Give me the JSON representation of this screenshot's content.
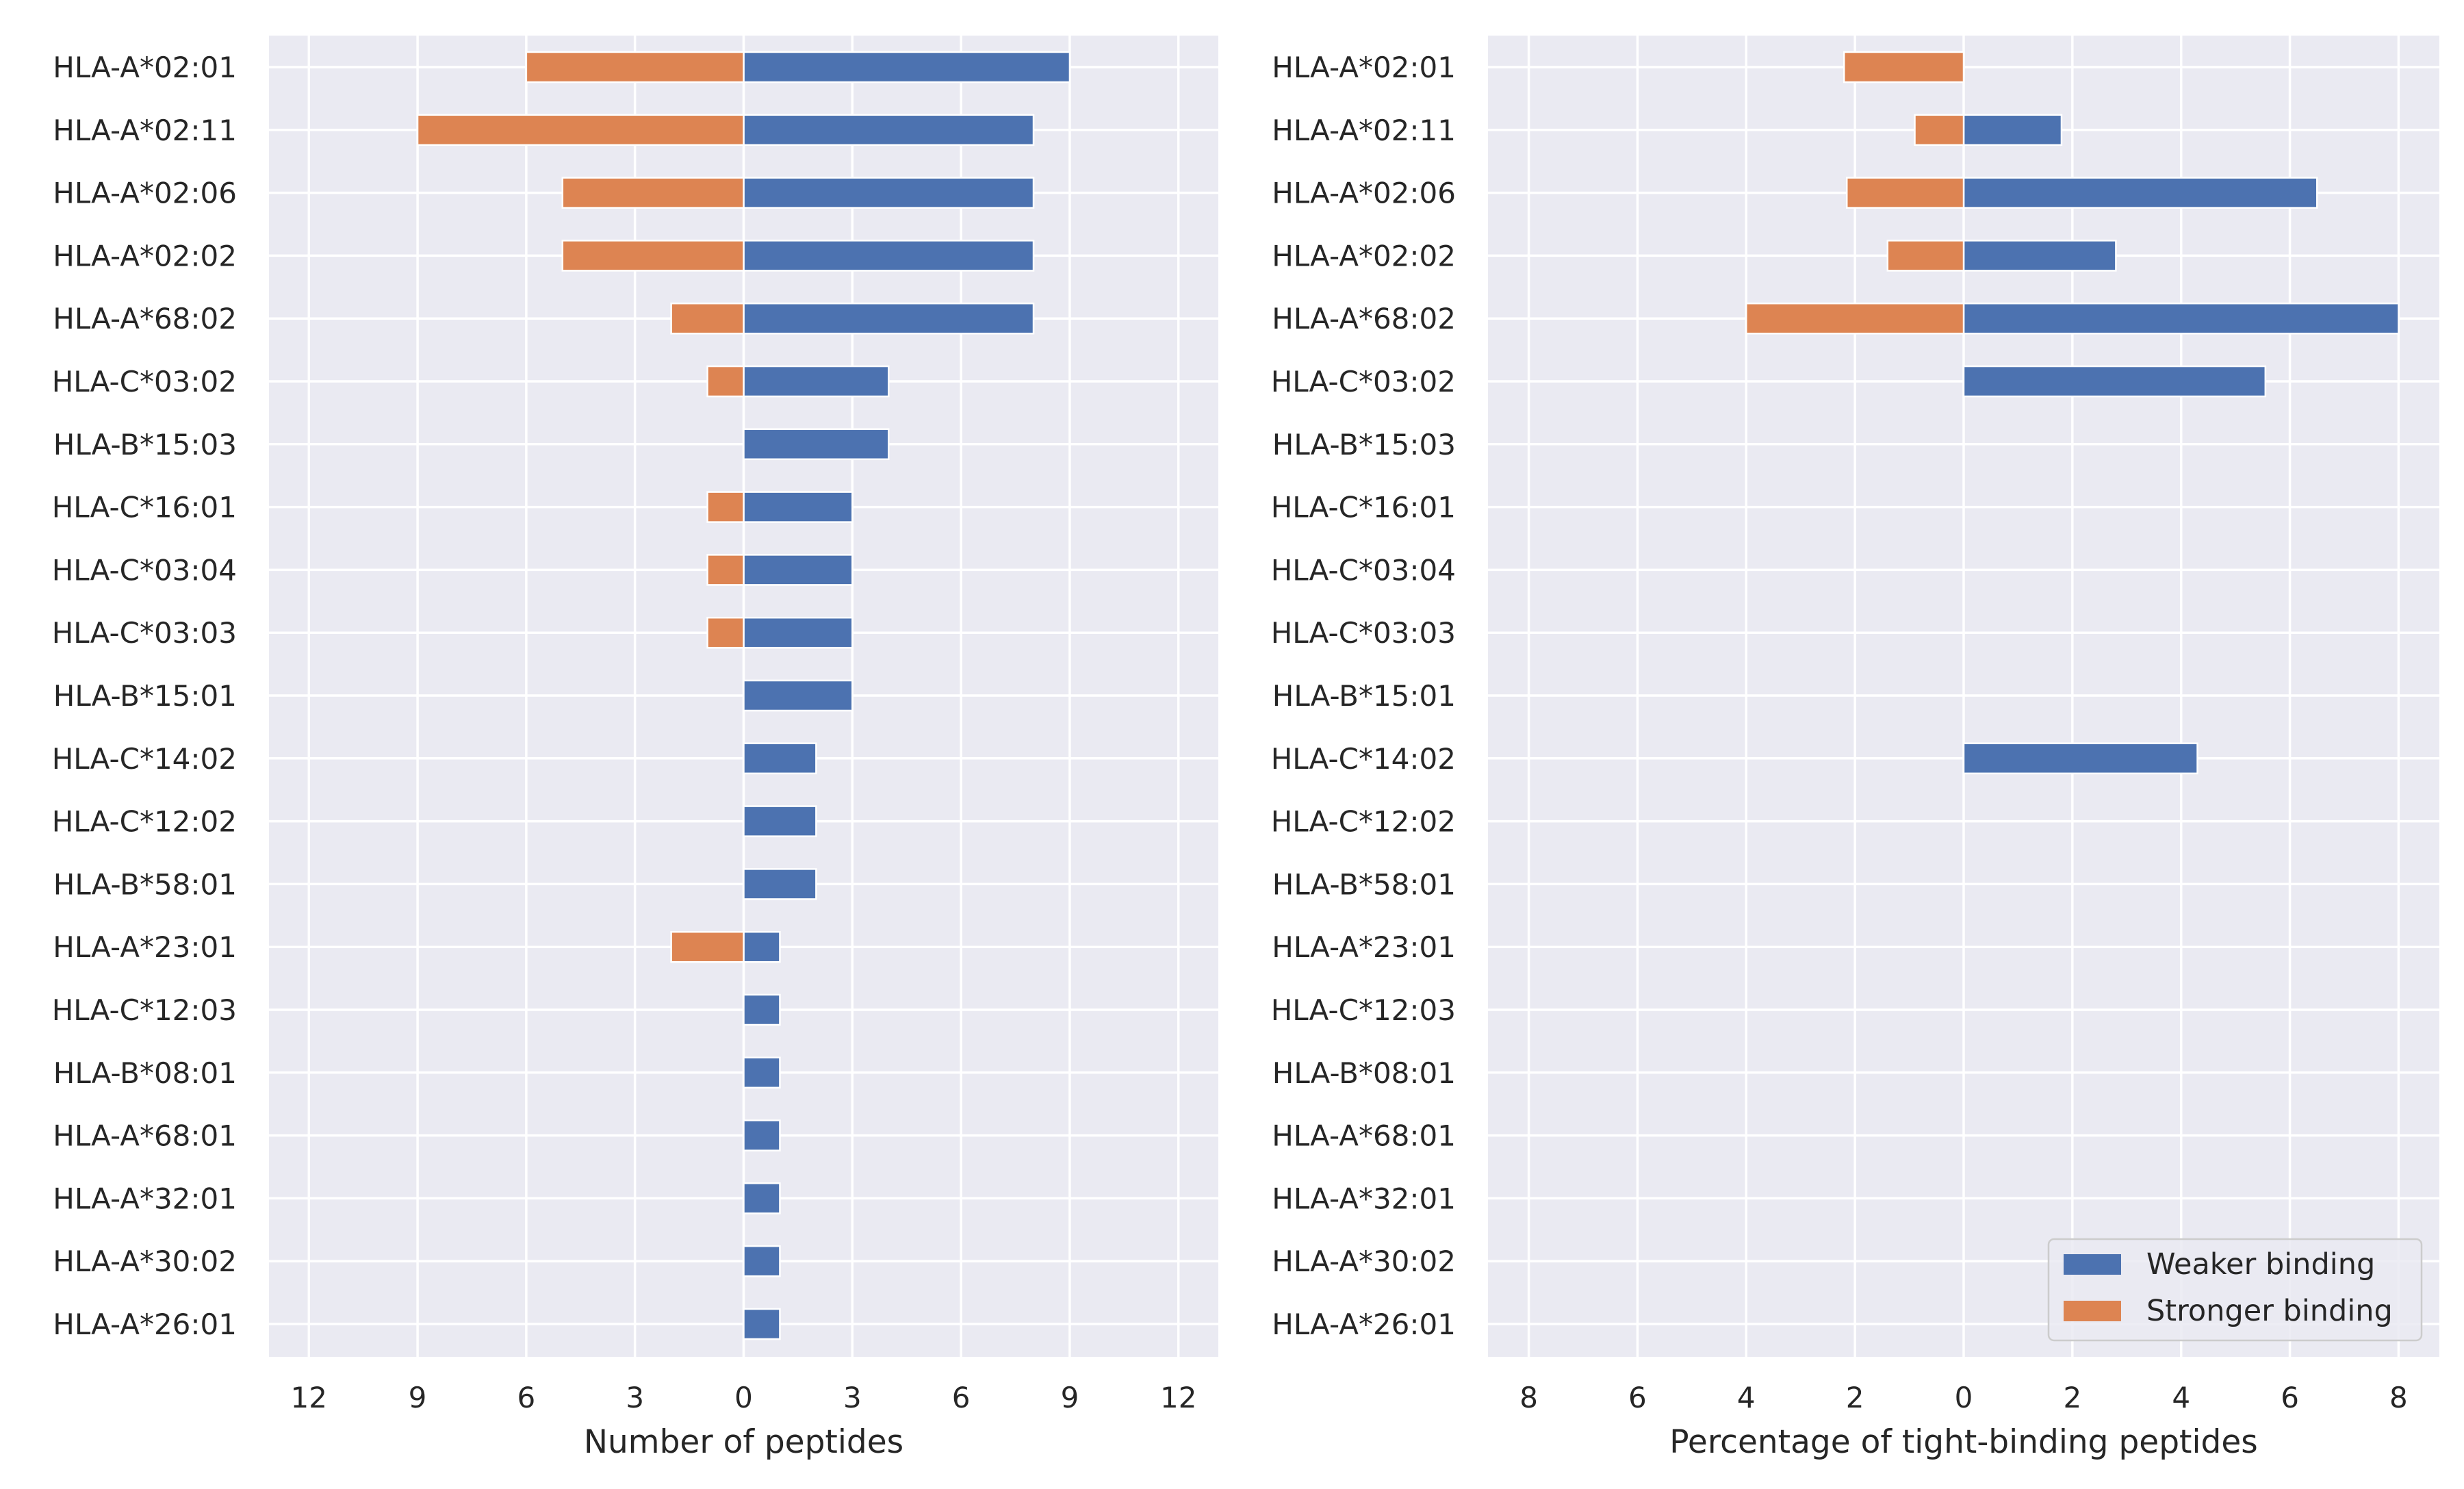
{
  "chart_data": [
    {
      "type": "bar",
      "orientation": "horizontal",
      "style": "diverging",
      "categories": [
        "HLA-A*02:01",
        "HLA-A*02:11",
        "HLA-A*02:06",
        "HLA-A*02:02",
        "HLA-A*68:02",
        "HLA-C*03:02",
        "HLA-B*15:03",
        "HLA-C*16:01",
        "HLA-C*03:04",
        "HLA-C*03:03",
        "HLA-B*15:01",
        "HLA-C*14:02",
        "HLA-C*12:02",
        "HLA-B*58:01",
        "HLA-A*23:01",
        "HLA-C*12:03",
        "HLA-B*08:01",
        "HLA-A*68:01",
        "HLA-A*32:01",
        "HLA-A*30:02",
        "HLA-A*26:01"
      ],
      "series": [
        {
          "name": "Weaker binding",
          "side": "right",
          "color": "#4c72b0",
          "values": [
            9,
            8,
            8,
            8,
            8,
            4,
            4,
            3,
            3,
            3,
            3,
            2,
            2,
            2,
            1,
            1,
            1,
            1,
            1,
            1,
            1
          ]
        },
        {
          "name": "Stronger binding",
          "side": "left",
          "color": "#dd8452",
          "values": [
            6,
            9,
            5,
            5,
            2,
            1,
            0,
            1,
            1,
            1,
            0,
            0,
            0,
            0,
            2,
            0,
            0,
            0,
            0,
            0,
            0
          ]
        }
      ],
      "xlabel": "Number of peptides",
      "ylabel": "",
      "xlim": [
        -13.1,
        13.1
      ],
      "xticks": [
        -12,
        -9,
        -6,
        -3,
        0,
        3,
        6,
        9,
        12
      ],
      "xtick_labels": [
        "12",
        "9",
        "6",
        "3",
        "0",
        "3",
        "6",
        "9",
        "12"
      ],
      "grid": true
    },
    {
      "type": "bar",
      "orientation": "horizontal",
      "style": "diverging",
      "categories": [
        "HLA-A*02:01",
        "HLA-A*02:11",
        "HLA-A*02:06",
        "HLA-A*02:02",
        "HLA-A*68:02",
        "HLA-C*03:02",
        "HLA-B*15:03",
        "HLA-C*16:01",
        "HLA-C*03:04",
        "HLA-C*03:03",
        "HLA-B*15:01",
        "HLA-C*14:02",
        "HLA-C*12:02",
        "HLA-B*58:01",
        "HLA-A*23:01",
        "HLA-C*12:03",
        "HLA-B*08:01",
        "HLA-A*68:01",
        "HLA-A*32:01",
        "HLA-A*30:02",
        "HLA-A*26:01"
      ],
      "series": [
        {
          "name": "Weaker binding",
          "side": "right",
          "color": "#4c72b0",
          "values": [
            0,
            1.8,
            6.5,
            2.8,
            8.0,
            5.55,
            0,
            0,
            0,
            0,
            0,
            4.3,
            0,
            0,
            0,
            0,
            0,
            0,
            0,
            0,
            0
          ]
        },
        {
          "name": "Stronger binding",
          "side": "left",
          "color": "#dd8452",
          "values": [
            2.2,
            0.9,
            2.15,
            1.4,
            4.0,
            0,
            0,
            0,
            0,
            0,
            0,
            0,
            0,
            0,
            0,
            0,
            0,
            0,
            0,
            0,
            0
          ]
        }
      ],
      "xlabel": "Percentage of tight-binding peptides",
      "ylabel": "",
      "xlim": [
        -8.75,
        8.75
      ],
      "xticks": [
        -8,
        -6,
        -4,
        -2,
        0,
        2,
        4,
        6,
        8
      ],
      "xtick_labels": [
        "8",
        "6",
        "4",
        "2",
        "0",
        "2",
        "4",
        "6",
        "8"
      ],
      "grid": true,
      "legend": {
        "placement": "lower-right",
        "entries": [
          {
            "label": "Weaker binding",
            "color": "#4c72b0"
          },
          {
            "label": "Stronger binding",
            "color": "#dd8452"
          }
        ]
      }
    }
  ],
  "colors": {
    "plot_background": "#eaeaf2",
    "grid": "#ffffff",
    "text": "#262626"
  }
}
